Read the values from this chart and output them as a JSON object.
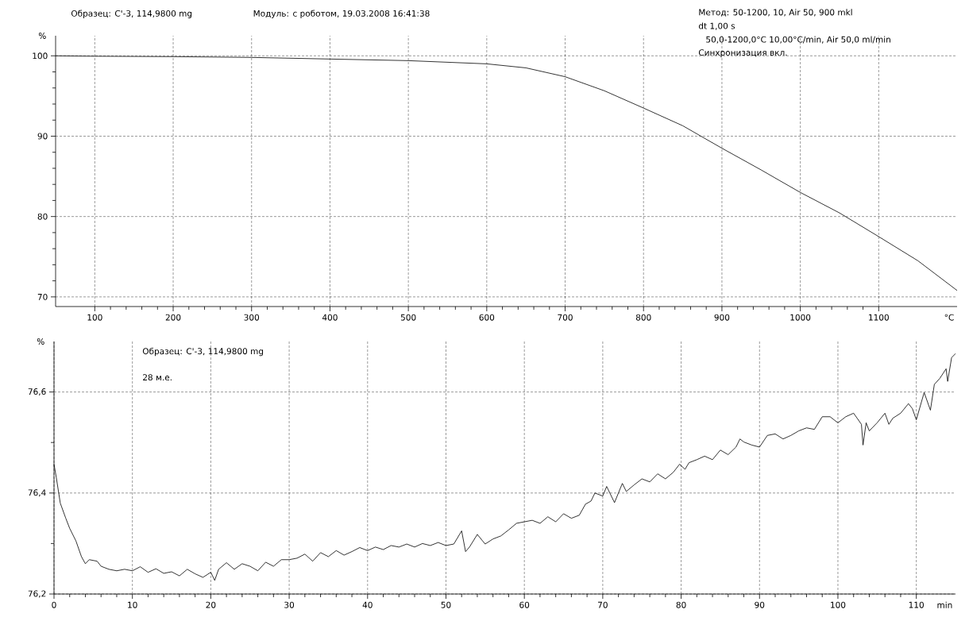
{
  "chart_data": [
    {
      "type": "line",
      "xlabel": "°C",
      "ylabel": "%",
      "annotations": [
        "Образец: C'-3, 114,9800 mg",
        "Модуль: с роботом, 19.03.2008 16:41:38",
        "Метод: 50-1200, 10, Air 50, 900 mkl",
        "dt 1,00 s",
        "50,0-1200,0°C 10,00°C/min, Air 50,0 ml/min",
        "Синхронизация вкл."
      ],
      "x": [
        50,
        100,
        200,
        300,
        400,
        500,
        600,
        650,
        700,
        750,
        800,
        850,
        900,
        950,
        1000,
        1050,
        1100,
        1150,
        1200
      ],
      "series": [
        {
          "color": "#000000",
          "values": [
            100.0,
            99.95,
            99.9,
            99.8,
            99.6,
            99.4,
            99.0,
            98.5,
            97.4,
            95.65,
            93.5,
            91.3,
            88.5,
            85.8,
            83.0,
            80.45,
            77.5,
            74.5,
            70.8
          ]
        }
      ],
      "xlim": [
        50,
        1200
      ],
      "ylim": [
        68.8,
        102.5
      ],
      "xticks": [
        100,
        200,
        300,
        400,
        500,
        600,
        700,
        800,
        900,
        1000,
        1100
      ],
      "yticks": [
        70,
        80,
        90,
        100
      ],
      "grid": true
    },
    {
      "type": "line",
      "xlabel": "min",
      "ylabel": "%",
      "annotations": [
        "Образец: C'-3, 114,9800 mg",
        "28 м.е."
      ],
      "x": [
        0,
        0.3,
        0.8,
        1.5,
        2,
        2.8,
        3.5,
        4,
        4.5,
        5.5,
        6,
        7,
        8,
        9,
        10,
        11,
        12,
        13,
        14,
        15,
        16,
        17,
        18,
        19,
        20,
        20.5,
        21,
        22,
        23,
        24,
        25,
        26,
        27,
        28,
        29,
        30,
        31,
        32,
        33,
        34,
        35,
        36,
        37,
        38,
        39,
        40,
        41,
        42,
        43,
        44,
        45,
        46,
        47,
        48,
        49,
        50,
        51,
        52,
        52.5,
        53,
        54,
        55,
        56,
        57,
        58,
        59,
        60,
        61,
        62,
        63,
        64,
        65,
        66,
        67,
        67.8,
        68.5,
        69,
        70,
        70.5,
        71.5,
        72.5,
        73,
        74,
        75,
        76,
        77,
        78,
        79,
        79.8,
        80.5,
        81,
        82,
        83,
        84,
        85,
        86,
        87,
        87.5,
        88,
        89,
        90,
        91,
        92,
        93,
        94,
        95,
        96,
        97,
        98,
        99,
        100,
        101,
        102,
        103,
        103.2,
        103.6,
        104,
        105,
        106,
        106.5,
        107,
        108,
        109,
        109.5,
        110,
        111,
        111.8,
        112.3,
        113,
        113.8,
        114,
        114.5,
        115
      ],
      "series": [
        {
          "color": "#000000",
          "values": [
            76.457,
            76.43,
            76.38,
            76.35,
            76.33,
            76.305,
            76.274,
            76.26,
            76.268,
            76.265,
            76.255,
            76.249,
            76.246,
            76.249,
            76.246,
            76.254,
            76.243,
            76.25,
            76.241,
            76.244,
            76.236,
            76.249,
            76.24,
            76.233,
            76.243,
            76.227,
            76.249,
            76.262,
            76.249,
            76.26,
            76.255,
            76.246,
            76.263,
            76.255,
            76.268,
            76.268,
            76.271,
            76.279,
            76.265,
            76.282,
            76.274,
            76.286,
            76.277,
            76.284,
            76.292,
            76.286,
            76.293,
            76.288,
            76.296,
            76.293,
            76.299,
            76.293,
            76.3,
            76.296,
            76.302,
            76.296,
            76.299,
            76.325,
            76.284,
            76.293,
            76.318,
            76.299,
            76.309,
            76.315,
            76.327,
            76.34,
            76.343,
            76.346,
            76.34,
            76.353,
            76.343,
            76.359,
            76.35,
            76.356,
            76.378,
            76.384,
            76.4,
            76.394,
            76.413,
            76.381,
            76.419,
            76.403,
            76.416,
            76.428,
            76.422,
            76.438,
            76.428,
            76.441,
            76.457,
            76.447,
            76.46,
            76.466,
            76.473,
            76.466,
            76.485,
            76.476,
            76.491,
            76.507,
            76.501,
            76.495,
            76.491,
            76.514,
            76.517,
            76.507,
            76.514,
            76.523,
            76.529,
            76.526,
            76.551,
            76.551,
            76.539,
            76.551,
            76.558,
            76.536,
            76.495,
            76.539,
            76.523,
            76.539,
            76.558,
            76.536,
            76.548,
            76.558,
            76.577,
            76.567,
            76.545,
            76.599,
            76.564,
            76.615,
            76.627,
            76.646,
            76.621,
            76.668,
            76.676
          ]
        }
      ],
      "xlim": [
        0,
        115
      ],
      "ylim": [
        76.2,
        76.7
      ],
      "xticks": [
        0,
        10,
        20,
        30,
        40,
        50,
        60,
        70,
        80,
        90,
        100,
        110
      ],
      "yticks": [
        {
          "value": 76.2,
          "label": "76,2"
        },
        {
          "value": 76.4,
          "label": "76,4"
        },
        {
          "value": 76.6,
          "label": "76,6"
        }
      ],
      "grid": true
    }
  ]
}
